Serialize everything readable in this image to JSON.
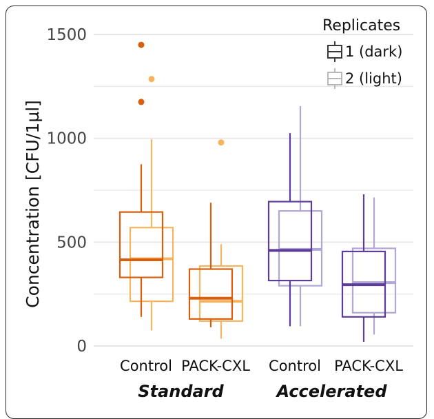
{
  "chart_data": {
    "type": "box",
    "ylabel": "Concentration [CFU/1µl]",
    "ylim": [
      0,
      1500
    ],
    "y_ticks": [
      0,
      500,
      1000,
      1500
    ],
    "grid": true,
    "categories": [
      "Control",
      "PACK-CXL",
      "Control",
      "PACK-CXL"
    ],
    "groups": [
      {
        "label": "Standard",
        "categories": [
          0,
          1
        ]
      },
      {
        "label": "Accelerated",
        "categories": [
          2,
          3
        ]
      }
    ],
    "legend": {
      "title": "Replicates",
      "position": "top-right",
      "entries": [
        {
          "label": "1 (dark)",
          "replicate": 1
        },
        {
          "label": "2 (light)",
          "replicate": 2
        }
      ]
    },
    "colors": {
      "standard_dark": "#d95f0e",
      "standard_light": "#f5b460",
      "accelerated_dark": "#5e3c99",
      "accelerated_light": "#b2a6d4",
      "grid": "#e6e6e6"
    },
    "series": [
      {
        "replicate": 1,
        "category": 0,
        "group": "Standard",
        "color": "#d95f0e",
        "whisker_low": 140,
        "q1": 330,
        "median": 415,
        "q3": 645,
        "whisker_high": 875,
        "outliers": [
          1450,
          1175
        ]
      },
      {
        "replicate": 2,
        "category": 0,
        "group": "Standard",
        "color": "#f5b460",
        "whisker_low": 75,
        "q1": 215,
        "median": 420,
        "q3": 570,
        "whisker_high": 995,
        "outliers": [
          1285
        ]
      },
      {
        "replicate": 1,
        "category": 1,
        "group": "Standard",
        "color": "#d95f0e",
        "whisker_low": 90,
        "q1": 130,
        "median": 230,
        "q3": 370,
        "whisker_high": 690,
        "outliers": []
      },
      {
        "replicate": 2,
        "category": 1,
        "group": "Standard",
        "color": "#f5b460",
        "whisker_low": 35,
        "q1": 120,
        "median": 215,
        "q3": 385,
        "whisker_high": 490,
        "outliers": [
          980
        ]
      },
      {
        "replicate": 1,
        "category": 2,
        "group": "Accelerated",
        "color": "#5e3c99",
        "whisker_low": 95,
        "q1": 315,
        "median": 460,
        "q3": 695,
        "whisker_high": 1025,
        "outliers": []
      },
      {
        "replicate": 2,
        "category": 2,
        "group": "Accelerated",
        "color": "#b2a6d4",
        "whisker_low": 95,
        "q1": 290,
        "median": 465,
        "q3": 650,
        "whisker_high": 1155,
        "outliers": []
      },
      {
        "replicate": 1,
        "category": 3,
        "group": "Accelerated",
        "color": "#5e3c99",
        "whisker_low": 20,
        "q1": 140,
        "median": 295,
        "q3": 455,
        "whisker_high": 730,
        "outliers": []
      },
      {
        "replicate": 2,
        "category": 3,
        "group": "Accelerated",
        "color": "#b2a6d4",
        "whisker_low": 55,
        "q1": 160,
        "median": 305,
        "q3": 470,
        "whisker_high": 715,
        "outliers": []
      }
    ]
  }
}
